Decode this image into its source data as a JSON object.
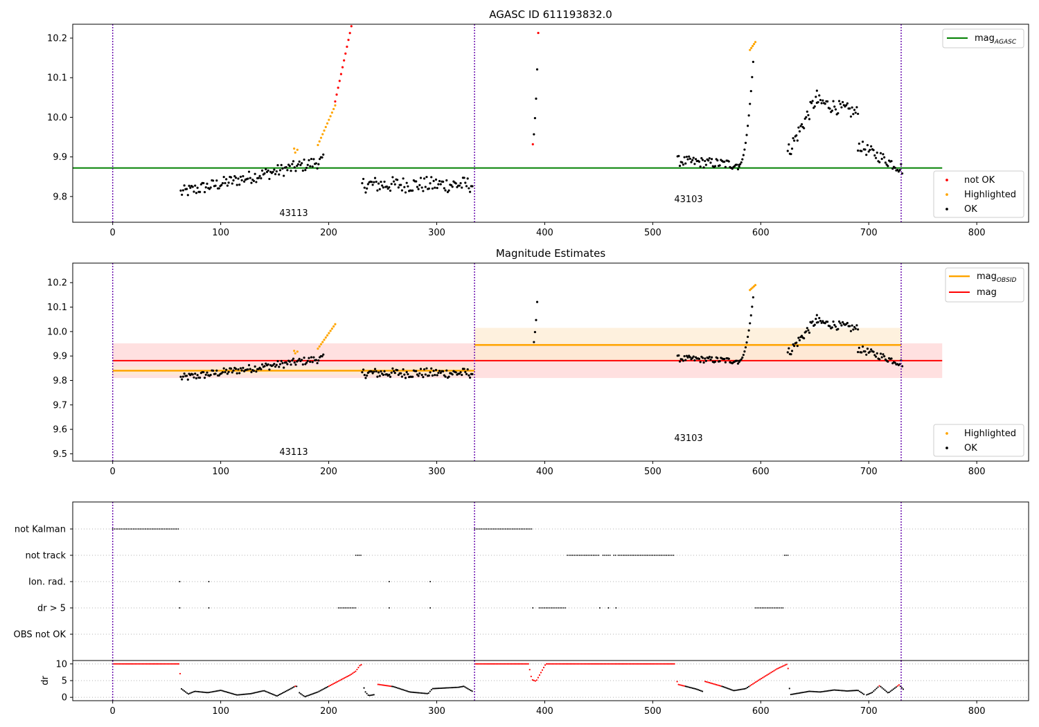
{
  "figure": {
    "background": "#ffffff"
  },
  "colors": {
    "ok": "#000000",
    "highlighted": "#ffa500",
    "not_ok": "#ff0000",
    "agasc_line": "#008000",
    "obsid_line": "#ffa500",
    "mag_line": "#ff0000",
    "obsid_band": "#fdebd0",
    "mag_band": "#ffcccc",
    "obs_boundary": "#6a0dad",
    "grid": "#b0b0b0"
  },
  "panel1": {
    "title": "AGASC ID 611193832.0",
    "yticks": [
      "9.8",
      "9.9",
      "10.0",
      "10.1",
      "10.2"
    ],
    "xticks": [
      "0",
      "100",
      "200",
      "300",
      "400",
      "500",
      "600",
      "700",
      "800"
    ],
    "obs_labels": [
      "43113",
      "43103"
    ],
    "legend_line": {
      "text": "mag",
      "sub": "AGASC"
    },
    "legend_points": [
      "not OK",
      "Highlighted",
      "OK"
    ]
  },
  "panel2": {
    "title": "Magnitude Estimates",
    "yticks": [
      "9.5",
      "9.6",
      "9.7",
      "9.8",
      "9.9",
      "10.0",
      "10.1",
      "10.2"
    ],
    "xticks": [
      "0",
      "100",
      "200",
      "300",
      "400",
      "500",
      "600",
      "700",
      "800"
    ],
    "obs_labels": [
      "43113",
      "43103"
    ],
    "legend_lines": [
      {
        "text": "mag",
        "sub": "OBSID"
      },
      {
        "text": "mag",
        "sub": ""
      }
    ],
    "legend_points": [
      "Highlighted",
      "OK"
    ]
  },
  "panel3": {
    "flags": [
      "not Kalman",
      "not track",
      "Ion. rad.",
      "dr > 5",
      "OBS not OK"
    ]
  },
  "panel4": {
    "ylabel": "dr",
    "yticks": [
      "0",
      "5",
      "10"
    ],
    "xticks": [
      "0",
      "100",
      "200",
      "300",
      "400",
      "500",
      "600",
      "700",
      "800"
    ]
  },
  "chart_data": [
    {
      "type": "scatter",
      "title": "AGASC ID 611193832.0",
      "xlim": [
        -37,
        848
      ],
      "ylim": [
        9.735,
        10.235
      ],
      "obs_boundaries": [
        0,
        335,
        730
      ],
      "observations": [
        {
          "obsid": "43113",
          "label_x": 167
        },
        {
          "obsid": "43103",
          "label_x": 532
        }
      ],
      "reference_lines": [
        {
          "name": "mag_AGASC",
          "value": 9.872,
          "x": [
            -37,
            768
          ]
        }
      ],
      "series": [
        {
          "name": "not OK",
          "segments": [
            {
              "x": [
                206,
                221
              ],
              "y0": 10.04,
              "y1": 10.23,
              "kind": "ramp",
              "n": 12
            },
            {
              "points": [
                [
                  389,
                  9.932
                ],
                [
                  394,
                  10.213
                ]
              ]
            }
          ]
        },
        {
          "name": "Highlighted",
          "segments": [
            {
              "points": [
                [
                  168,
                  9.921
                ],
                [
                  169,
                  9.911
                ],
                [
                  171,
                  9.918
                ]
              ]
            },
            {
              "x": [
                190,
                206
              ],
              "y0": 9.93,
              "y1": 10.03,
              "kind": "ramp",
              "n": 12
            },
            {
              "x": [
                590,
                595
              ],
              "y0": 10.17,
              "y1": 10.19,
              "kind": "ramp",
              "n": 5
            }
          ]
        },
        {
          "name": "OK",
          "segments": [
            {
              "x": [
                63,
                195
              ],
              "y0": 9.81,
              "y1": 9.89,
              "kind": "ramp",
              "noise": 0.016,
              "n": 120
            },
            {
              "x": [
                231,
                333
              ],
              "y0": 9.83,
              "y1": 9.83,
              "kind": "ramp",
              "noise": 0.02,
              "n": 95
            },
            {
              "points": [
                [
                  390,
                  9.957
                ],
                [
                  391,
                  9.998
                ],
                [
                  392,
                  10.047
                ],
                [
                  393,
                  10.121
                ]
              ]
            },
            {
              "x": [
                523,
                580
              ],
              "y0": 9.89,
              "y1": 9.88,
              "kind": "ramp",
              "noise": 0.013,
              "n": 55
            },
            {
              "x": [
                580,
                593
              ],
              "y0": 9.88,
              "y1": 10.14,
              "kind": "rise",
              "n": 14
            },
            {
              "x": [
                625,
                652
              ],
              "y0": 9.91,
              "y1": 10.05,
              "kind": "ramp",
              "noise": 0.02,
              "n": 28
            },
            {
              "x": [
                652,
                690
              ],
              "y0": 10.04,
              "y1": 10.01,
              "kind": "ramp",
              "noise": 0.018,
              "n": 36
            },
            {
              "x": [
                690,
                731
              ],
              "y0": 9.93,
              "y1": 9.87,
              "kind": "ramp",
              "noise": 0.015,
              "n": 38
            }
          ]
        }
      ]
    },
    {
      "type": "scatter",
      "title": "Magnitude Estimates",
      "xlim": [
        -37,
        848
      ],
      "ylim": [
        9.47,
        10.28
      ],
      "obs_boundaries": [
        0,
        335,
        730
      ],
      "observations": [
        {
          "obsid": "43113",
          "label_x": 167
        },
        {
          "obsid": "43103",
          "label_x": 532
        }
      ],
      "reference_lines": [
        {
          "name": "mag_OBSID",
          "segments": [
            {
              "x": [
                0,
                335
              ],
              "value": 9.84,
              "band": [
                9.822,
                9.858
              ]
            },
            {
              "x": [
                335,
                730
              ],
              "value": 9.945,
              "band": [
                9.878,
                10.015
              ]
            }
          ]
        },
        {
          "name": "mag",
          "x": [
            0,
            768
          ],
          "value": 9.881,
          "band": [
            9.81,
            9.952
          ]
        }
      ],
      "series": [
        {
          "name": "Highlighted",
          "same_as_panel": 1
        },
        {
          "name": "OK",
          "same_as_panel": 1
        }
      ]
    },
    {
      "type": "scatter",
      "title": "",
      "categories": [
        "not Kalman",
        "not track",
        "Ion. rad.",
        "dr > 5",
        "OBS not OK"
      ],
      "xlim": [
        -37,
        848
      ],
      "series": [
        {
          "name": "not Kalman",
          "ranges": [
            [
              0,
              62
            ],
            [
              335,
              388
            ]
          ]
        },
        {
          "name": "not track",
          "ranges": [
            [
              225,
              230
            ],
            [
              421,
              451
            ],
            [
              454,
              461
            ],
            [
              464,
              466
            ],
            [
              468,
              520
            ],
            [
              622,
              626
            ]
          ]
        },
        {
          "name": "Ion. rad.",
          "points": [
            62,
            89,
            256,
            294
          ]
        },
        {
          "name": "dr > 5",
          "points": [
            62,
            89,
            256,
            294,
            389,
            451,
            459,
            466
          ],
          "ranges": [
            [
              209,
              225
            ],
            [
              395,
              420
            ],
            [
              595,
              621
            ]
          ]
        },
        {
          "name": "OBS not OK",
          "ranges": []
        }
      ]
    },
    {
      "type": "scatter",
      "title": "",
      "ylabel": "dr",
      "xlim": [
        -37,
        848
      ],
      "ylim": [
        -1,
        11
      ],
      "series": [
        {
          "name": "dr",
          "anchors": [
            [
              0,
              10
            ],
            [
              62,
              10
            ],
            [
              63,
              2.7
            ],
            [
              70,
              1.0
            ],
            [
              76,
              1.8
            ],
            [
              88,
              1.4
            ],
            [
              100,
              2.1
            ],
            [
              115,
              0.7
            ],
            [
              128,
              1.1
            ],
            [
              140,
              2.0
            ],
            [
              152,
              0.4
            ],
            [
              165,
              2.6
            ],
            [
              170,
              3.5
            ],
            [
              173,
              1.3
            ],
            [
              178,
              0.2
            ],
            [
              190,
              1.6
            ],
            [
              204,
              4.0
            ],
            [
              220,
              6.7
            ],
            [
              225,
              7.8
            ],
            [
              230,
              10
            ],
            [
              233,
              2.0
            ],
            [
              237,
              0.5
            ],
            [
              242,
              0.8
            ],
            [
              245,
              3.9
            ],
            [
              260,
              3.2
            ],
            [
              275,
              1.6
            ],
            [
              292,
              1.1
            ],
            [
              296,
              2.6
            ],
            [
              320,
              3.0
            ],
            [
              325,
              3.3
            ],
            [
              333,
              1.8
            ],
            [
              335,
              10
            ],
            [
              385,
              10
            ],
            [
              388,
              5.3
            ],
            [
              392,
              4.8
            ],
            [
              401,
              10
            ],
            [
              520,
              10
            ],
            [
              523,
              3.9
            ],
            [
              540,
              2.5
            ],
            [
              546,
              1.8
            ],
            [
              548,
              4.8
            ],
            [
              565,
              3.2
            ],
            [
              575,
              2.0
            ],
            [
              586,
              2.6
            ],
            [
              598,
              5.1
            ],
            [
              615,
              8.5
            ],
            [
              625,
              10
            ],
            [
              627,
              0.8
            ],
            [
              645,
              1.8
            ],
            [
              655,
              1.6
            ],
            [
              668,
              2.2
            ],
            [
              680,
              1.9
            ],
            [
              690,
              2.1
            ],
            [
              697,
              0.6
            ],
            [
              703,
              1.4
            ],
            [
              710,
              3.5
            ],
            [
              718,
              1.3
            ],
            [
              728,
              3.7
            ],
            [
              732,
              2.4
            ]
          ]
        }
      ]
    }
  ]
}
